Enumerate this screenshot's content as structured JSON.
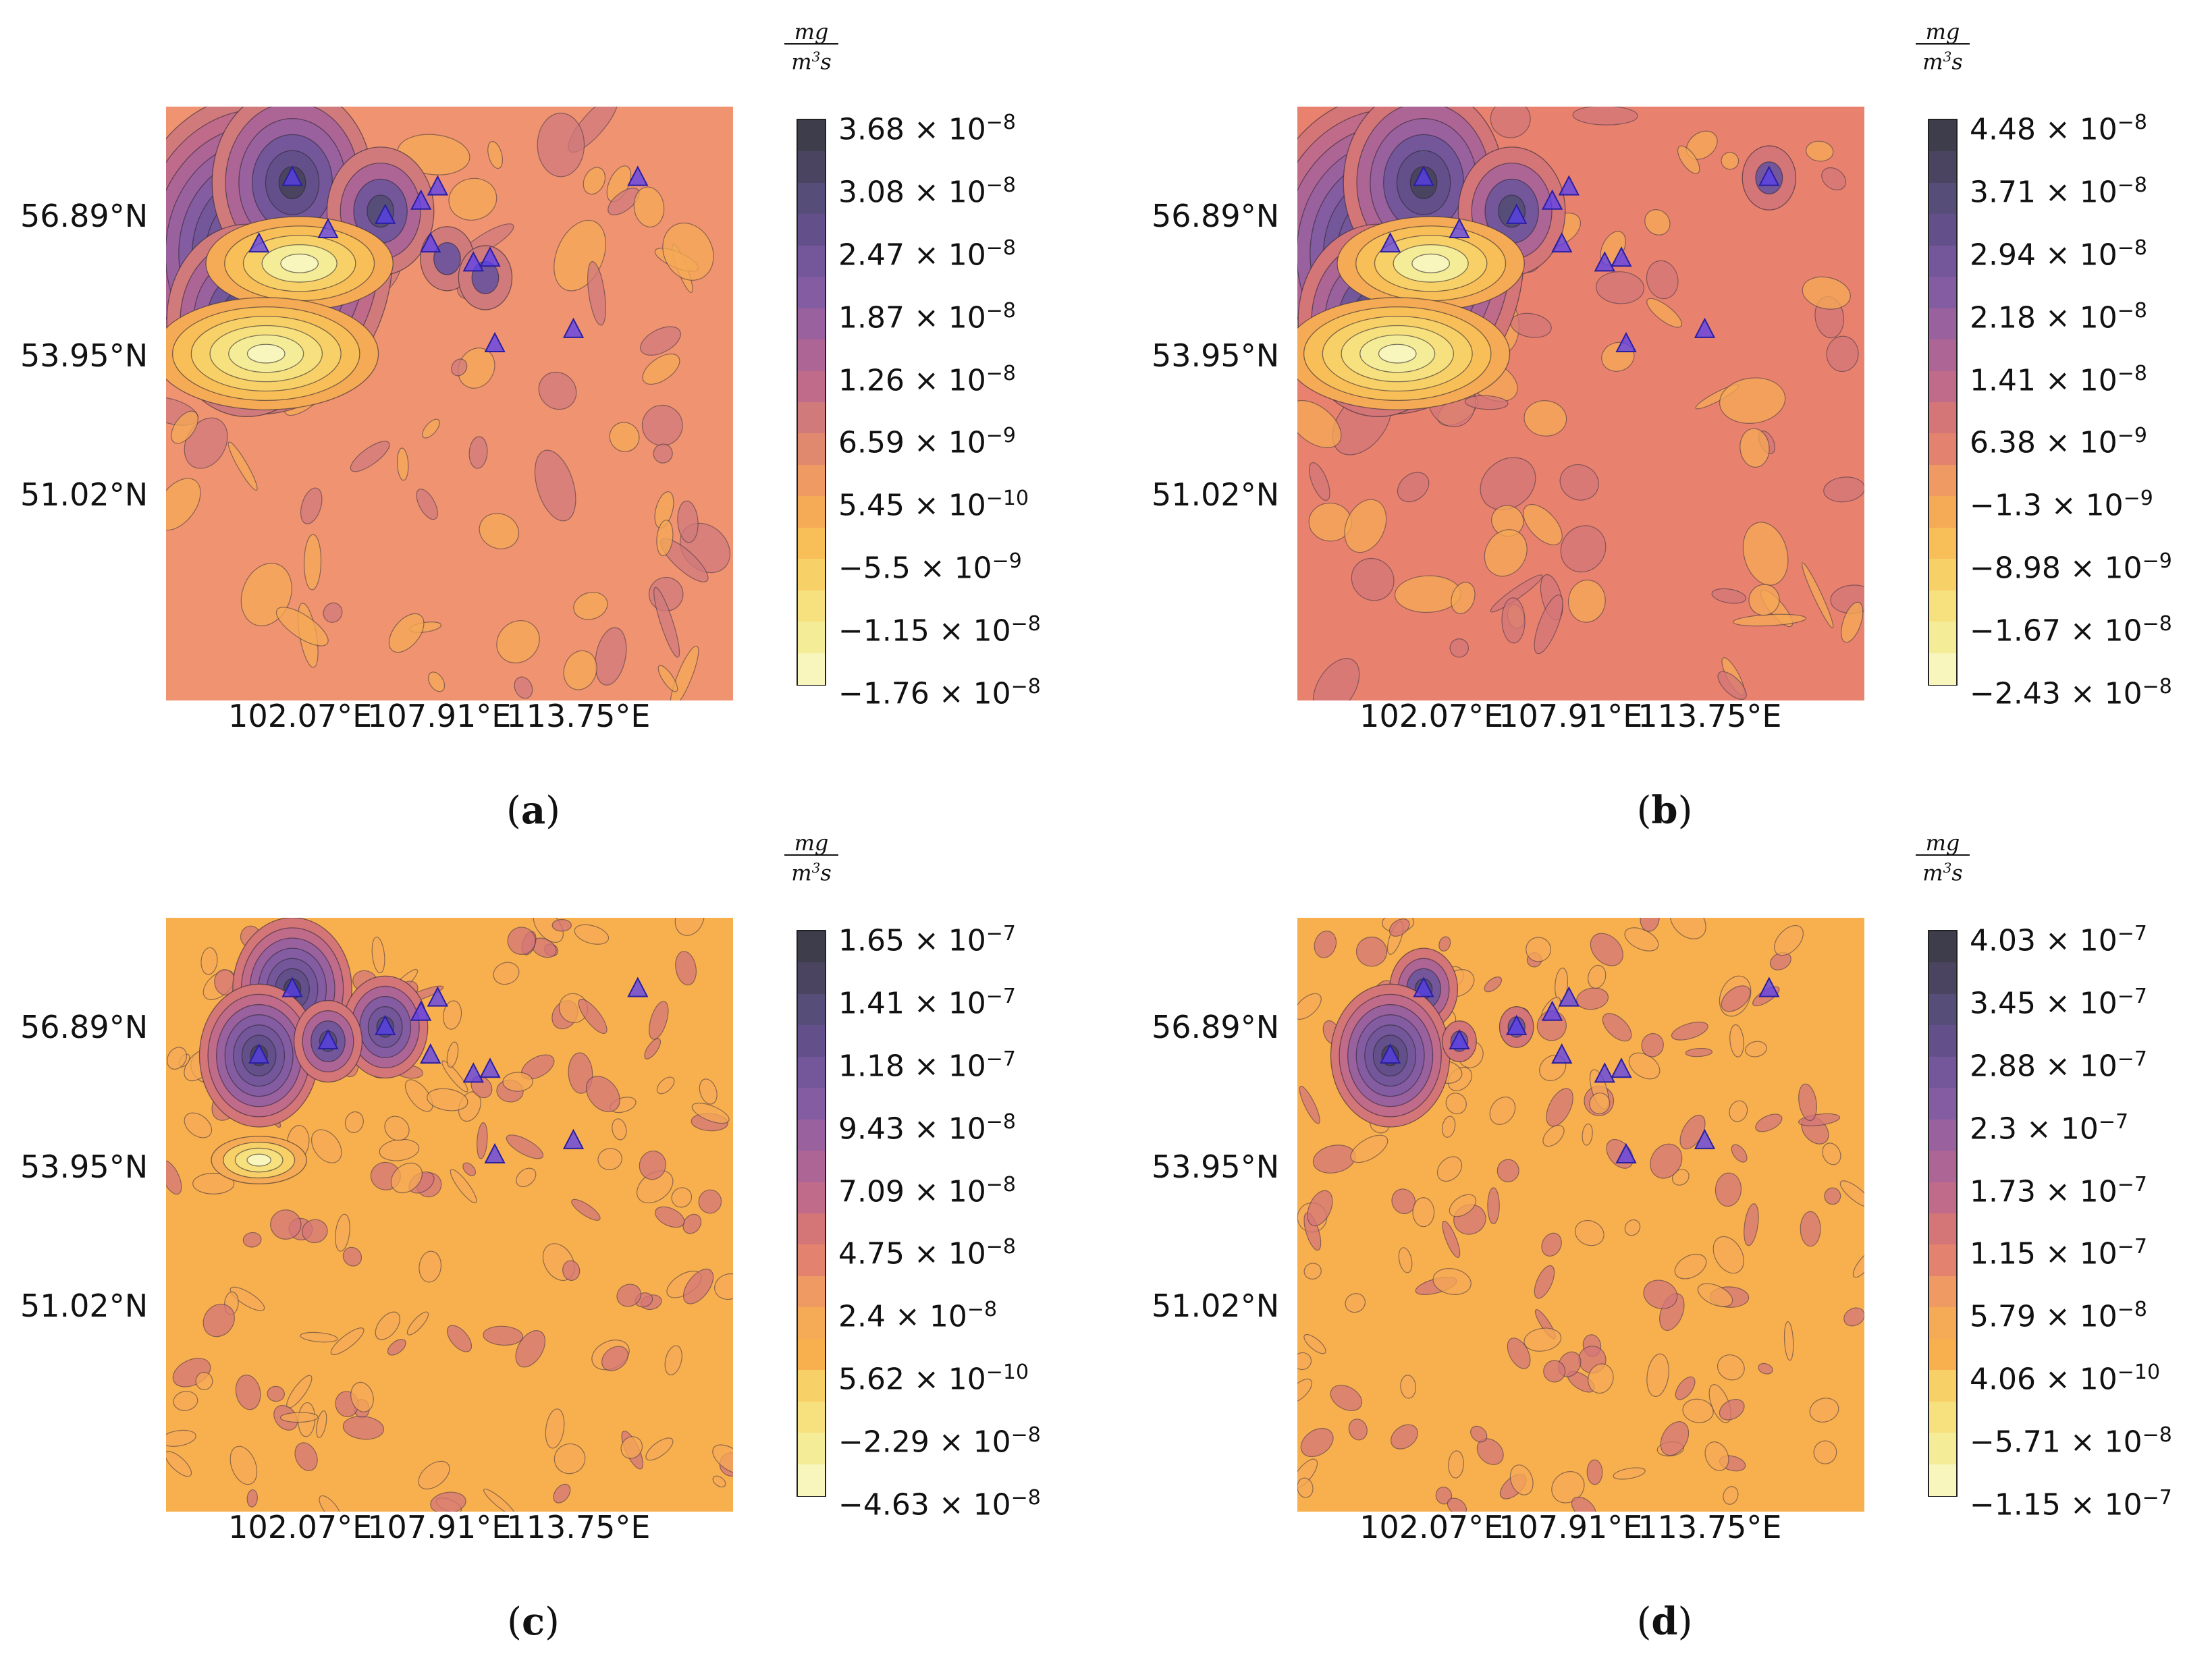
{
  "units": {
    "numerator": "mg",
    "denominator_base": "m",
    "denominator_exp": "3",
    "denominator_tail": "s"
  },
  "chart_data": [
    {
      "id": "a",
      "type": "contour map",
      "caption": "a",
      "x_ticks": [
        "102.07°E",
        "107.91°E",
        "113.75°E"
      ],
      "y_ticks": [
        "56.89°N",
        "53.95°N",
        "51.02°N"
      ],
      "background_color": "#ef9370",
      "colorbar": {
        "ticks": [
          {
            "m": "3.68",
            "e": "−8"
          },
          {
            "m": "3.08",
            "e": "−8"
          },
          {
            "m": "2.47",
            "e": "−8"
          },
          {
            "m": "1.87",
            "e": "−8"
          },
          {
            "m": "1.26",
            "e": "−8"
          },
          {
            "m": "6.59",
            "e": "−9"
          },
          {
            "m": "5.45",
            "e": "−10"
          },
          {
            "m": "−5.5",
            "e": "−9"
          },
          {
            "m": "−1.15",
            "e": "−8"
          },
          {
            "m": "−1.76",
            "e": "−8"
          }
        ],
        "colors": [
          "#3d3d4c",
          "#4a4460",
          "#564d78",
          "#63508a",
          "#73579a",
          "#845ca1",
          "#9a619f",
          "#ad6596",
          "#c06b8a",
          "#d07a7c",
          "#e0896f",
          "#ef9a62",
          "#f5aa55",
          "#f8be58",
          "#f8d068",
          "#f7e07e",
          "#f5ec98",
          "#f8f6bc"
        ]
      },
      "stations": [
        {
          "lon": 101.5,
          "lat": 57.7
        },
        {
          "lon": 105.4,
          "lat": 56.9
        },
        {
          "lon": 106.9,
          "lat": 57.2
        },
        {
          "lon": 107.6,
          "lat": 57.5
        },
        {
          "lon": 103.0,
          "lat": 56.6
        },
        {
          "lon": 100.1,
          "lat": 56.3
        },
        {
          "lon": 107.3,
          "lat": 56.3
        },
        {
          "lon": 109.1,
          "lat": 55.9
        },
        {
          "lon": 109.8,
          "lat": 56.0
        },
        {
          "lon": 110.0,
          "lat": 54.2
        },
        {
          "lon": 113.3,
          "lat": 54.5
        },
        {
          "lon": 116.0,
          "lat": 57.7
        }
      ],
      "blobs": [
        {
          "lon": 100.1,
          "lat": 56.1,
          "v": 3.4
        },
        {
          "lon": 101.5,
          "lat": 57.6,
          "v": 2.0
        },
        {
          "lon": 105.2,
          "lat": 57.0,
          "v": 1.4
        },
        {
          "lon": 99.6,
          "lat": 54.7,
          "v": 2.0
        },
        {
          "lon": 101.8,
          "lat": 55.9,
          "v": -1.6
        },
        {
          "lon": 100.4,
          "lat": 54.0,
          "v": -1.9
        },
        {
          "lon": 108.0,
          "lat": 56.0,
          "v": 0.7
        },
        {
          "lon": 109.6,
          "lat": 55.6,
          "v": 0.8
        }
      ]
    },
    {
      "id": "b",
      "type": "contour map",
      "caption": "b",
      "x_ticks": [
        "102.07°E",
        "107.91°E",
        "113.75°E"
      ],
      "y_ticks": [
        "56.89°N",
        "53.95°N",
        "51.02°N"
      ],
      "background_color": "#e8826f",
      "colorbar": {
        "ticks": [
          {
            "m": "4.48",
            "e": "−8"
          },
          {
            "m": "3.71",
            "e": "−8"
          },
          {
            "m": "2.94",
            "e": "−8"
          },
          {
            "m": "2.18",
            "e": "−8"
          },
          {
            "m": "1.41",
            "e": "−8"
          },
          {
            "m": "6.38",
            "e": "−9"
          },
          {
            "m": "−1.3",
            "e": "−9"
          },
          {
            "m": "−8.98",
            "e": "−9"
          },
          {
            "m": "−1.67",
            "e": "−8"
          },
          {
            "m": "−2.43",
            "e": "−8"
          }
        ],
        "colors": [
          "#3d3d4c",
          "#4a4460",
          "#564d78",
          "#63508a",
          "#73579a",
          "#845ca1",
          "#9a619f",
          "#ad6596",
          "#c06b8a",
          "#d47578",
          "#e3826e",
          "#ef9a62",
          "#f5aa55",
          "#f8be58",
          "#f8d068",
          "#f7e07e",
          "#f5ec98",
          "#f8f6bc"
        ]
      },
      "stations": [
        {
          "lon": 101.5,
          "lat": 57.7
        },
        {
          "lon": 105.4,
          "lat": 56.9
        },
        {
          "lon": 106.9,
          "lat": 57.2
        },
        {
          "lon": 107.6,
          "lat": 57.5
        },
        {
          "lon": 103.0,
          "lat": 56.6
        },
        {
          "lon": 100.1,
          "lat": 56.3
        },
        {
          "lon": 107.3,
          "lat": 56.3
        },
        {
          "lon": 109.1,
          "lat": 55.9
        },
        {
          "lon": 109.8,
          "lat": 56.0
        },
        {
          "lon": 110.0,
          "lat": 54.2
        },
        {
          "lon": 113.3,
          "lat": 54.5
        },
        {
          "lon": 116.0,
          "lat": 57.7
        }
      ],
      "blobs": [
        {
          "lon": 100.1,
          "lat": 56.1,
          "v": 3.4
        },
        {
          "lon": 101.5,
          "lat": 57.6,
          "v": 2.0
        },
        {
          "lon": 105.2,
          "lat": 57.0,
          "v": 1.4
        },
        {
          "lon": 99.6,
          "lat": 54.7,
          "v": 2.0
        },
        {
          "lon": 101.8,
          "lat": 55.9,
          "v": -1.6
        },
        {
          "lon": 100.4,
          "lat": 54.0,
          "v": -1.9
        },
        {
          "lon": 116.0,
          "lat": 57.7,
          "v": 0.8
        }
      ]
    },
    {
      "id": "c",
      "type": "contour map",
      "caption": "c",
      "x_ticks": [
        "102.07°E",
        "107.91°E",
        "113.75°E"
      ],
      "y_ticks": [
        "56.89°N",
        "53.95°N",
        "51.02°N"
      ],
      "background_color": "#f8b04f",
      "colorbar": {
        "ticks": [
          {
            "m": "1.65",
            "e": "−7"
          },
          {
            "m": "1.41",
            "e": "−7"
          },
          {
            "m": "1.18",
            "e": "−7"
          },
          {
            "m": "9.43",
            "e": "−8"
          },
          {
            "m": "7.09",
            "e": "−8"
          },
          {
            "m": "4.75",
            "e": "−8"
          },
          {
            "m": "2.4",
            "e": "−8"
          },
          {
            "m": "5.62",
            "e": "−10"
          },
          {
            "m": "−2.29",
            "e": "−8"
          },
          {
            "m": "−4.63",
            "e": "−8"
          }
        ],
        "colors": [
          "#3d3d4c",
          "#4a4460",
          "#564d78",
          "#63508a",
          "#73579a",
          "#845ca1",
          "#9a619f",
          "#ad6596",
          "#c06b8a",
          "#d47578",
          "#e3826e",
          "#ef9a62",
          "#f5aa55",
          "#f8b04f",
          "#f8d068",
          "#f7e07e",
          "#f5ec98",
          "#f8f6bc"
        ]
      },
      "stations": [
        {
          "lon": 101.5,
          "lat": 57.7
        },
        {
          "lon": 105.4,
          "lat": 56.9
        },
        {
          "lon": 106.9,
          "lat": 57.2
        },
        {
          "lon": 107.6,
          "lat": 57.5
        },
        {
          "lon": 103.0,
          "lat": 56.6
        },
        {
          "lon": 100.1,
          "lat": 56.3
        },
        {
          "lon": 107.3,
          "lat": 56.3
        },
        {
          "lon": 109.1,
          "lat": 55.9
        },
        {
          "lon": 109.8,
          "lat": 56.0
        },
        {
          "lon": 110.0,
          "lat": 54.2
        },
        {
          "lon": 113.3,
          "lat": 54.5
        },
        {
          "lon": 116.0,
          "lat": 57.7
        }
      ],
      "blobs": [
        {
          "lon": 101.5,
          "lat": 57.7,
          "v": 2.2
        },
        {
          "lon": 100.1,
          "lat": 56.3,
          "v": 2.4
        },
        {
          "lon": 105.4,
          "lat": 56.9,
          "v": 1.8
        },
        {
          "lon": 103.0,
          "lat": 56.6,
          "v": 1.2
        },
        {
          "lon": 100.1,
          "lat": 54.1,
          "v": -1.4
        }
      ]
    },
    {
      "id": "d",
      "type": "contour map",
      "caption": "d",
      "x_ticks": [
        "102.07°E",
        "107.91°E",
        "113.75°E"
      ],
      "y_ticks": [
        "56.89°N",
        "53.95°N",
        "51.02°N"
      ],
      "background_color": "#f8b04f",
      "colorbar": {
        "ticks": [
          {
            "m": "4.03",
            "e": "−7"
          },
          {
            "m": "3.45",
            "e": "−7"
          },
          {
            "m": "2.88",
            "e": "−7"
          },
          {
            "m": "2.3",
            "e": "−7"
          },
          {
            "m": "1.73",
            "e": "−7"
          },
          {
            "m": "1.15",
            "e": "−7"
          },
          {
            "m": "5.79",
            "e": "−8"
          },
          {
            "m": "4.06",
            "e": "−10"
          },
          {
            "m": "−5.71",
            "e": "−8"
          },
          {
            "m": "−1.15",
            "e": "−7"
          }
        ],
        "colors": [
          "#3d3d4c",
          "#4a4460",
          "#564d78",
          "#63508a",
          "#73579a",
          "#845ca1",
          "#9a619f",
          "#ad6596",
          "#c06b8a",
          "#d47578",
          "#e3826e",
          "#ef9a62",
          "#f5aa55",
          "#f8b04f",
          "#f8d068",
          "#f7e07e",
          "#f5ec98",
          "#f8f6bc"
        ]
      },
      "stations": [
        {
          "lon": 101.5,
          "lat": 57.7
        },
        {
          "lon": 105.4,
          "lat": 56.9
        },
        {
          "lon": 106.9,
          "lat": 57.2
        },
        {
          "lon": 107.6,
          "lat": 57.5
        },
        {
          "lon": 103.0,
          "lat": 56.6
        },
        {
          "lon": 100.1,
          "lat": 56.3
        },
        {
          "lon": 107.3,
          "lat": 56.3
        },
        {
          "lon": 109.1,
          "lat": 55.9
        },
        {
          "lon": 109.8,
          "lat": 56.0
        },
        {
          "lon": 110.0,
          "lat": 54.2
        },
        {
          "lon": 113.3,
          "lat": 54.5
        },
        {
          "lon": 116.0,
          "lat": 57.7
        }
      ],
      "blobs": [
        {
          "lon": 101.5,
          "lat": 57.7,
          "v": 1.2
        },
        {
          "lon": 100.1,
          "lat": 56.3,
          "v": 2.2
        },
        {
          "lon": 105.4,
          "lat": 56.9,
          "v": 0.8
        },
        {
          "lon": 103.0,
          "lat": 56.6,
          "v": 0.6
        }
      ]
    }
  ]
}
